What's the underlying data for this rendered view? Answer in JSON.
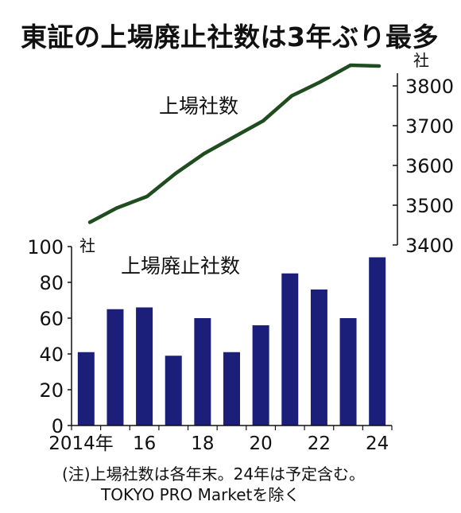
{
  "title": "東証の上場廃止社数は3年ぶり最多",
  "notes": [
    "(注)上場社数は各年末。24年は予定含む。",
    "TOKYO PRO Marketを除く"
  ],
  "chart_data": [
    {
      "type": "line",
      "series": [
        {
          "name": "上場社数",
          "x": [
            2014,
            2015,
            2016,
            2017,
            2018,
            2019,
            2020,
            2021,
            2022,
            2023,
            2024
          ],
          "values": [
            3457,
            3493,
            3522,
            3580,
            3630,
            3670,
            3712,
            3775,
            3810,
            3852,
            3850
          ]
        }
      ],
      "yaxis": {
        "unit": "社",
        "ticks": [
          3400,
          3500,
          3600,
          3700,
          3800
        ],
        "ylim": [
          3400,
          3855
        ],
        "side": "right"
      },
      "color": "#1f4d1f",
      "grid": false
    },
    {
      "type": "bar",
      "series": [
        {
          "name": "上場廃止社数",
          "x": [
            2014,
            2015,
            2016,
            2017,
            2018,
            2019,
            2020,
            2021,
            2022,
            2023,
            2024
          ],
          "values": [
            41,
            65,
            66,
            39,
            60,
            41,
            56,
            85,
            76,
            60,
            94
          ]
        }
      ],
      "xaxis": {
        "tick_labels": [
          "2014年",
          "16",
          "18",
          "20",
          "22",
          "24"
        ]
      },
      "yaxis": {
        "unit": "社",
        "ticks": [
          0,
          20,
          40,
          60,
          80,
          100
        ],
        "ylim": [
          0,
          100
        ],
        "side": "left"
      },
      "color": "#1b1f7a",
      "grid": false
    }
  ]
}
